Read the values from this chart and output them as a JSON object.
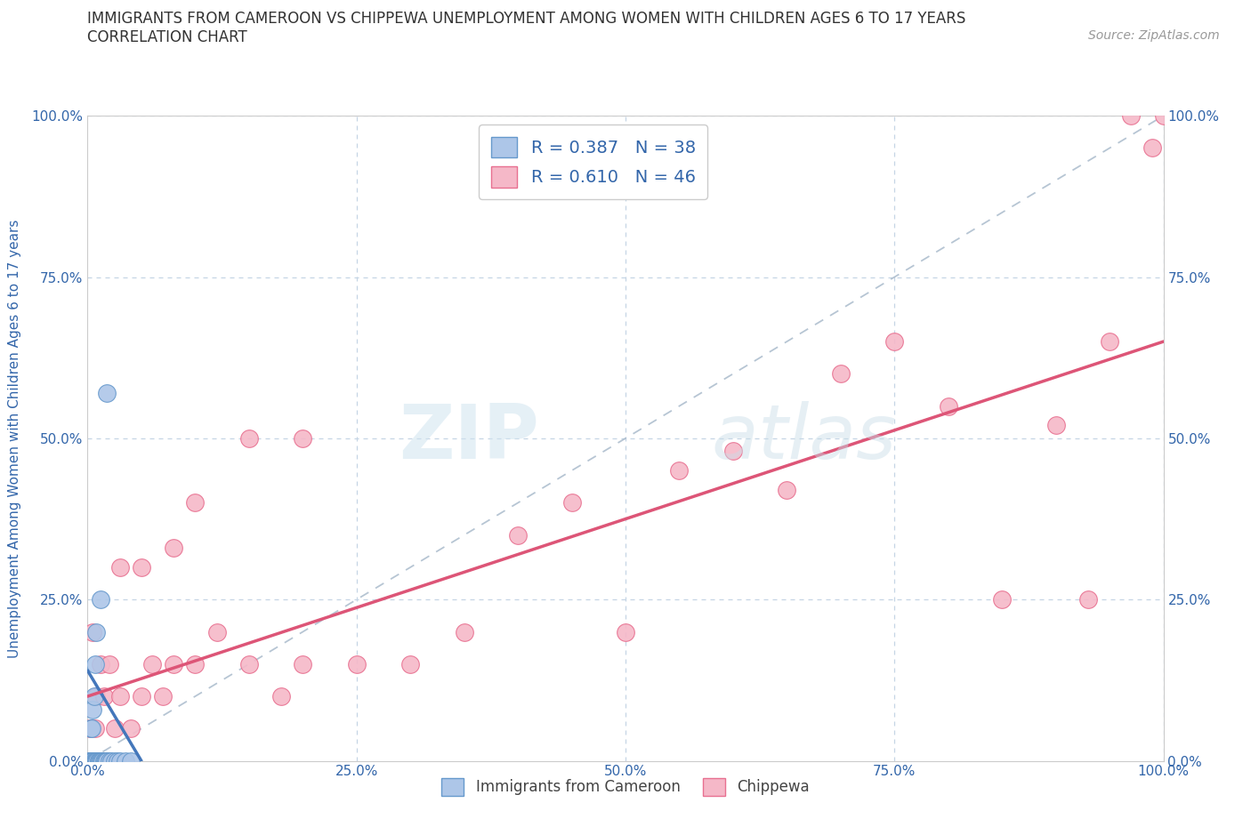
{
  "title_line1": "IMMIGRANTS FROM CAMEROON VS CHIPPEWA UNEMPLOYMENT AMONG WOMEN WITH CHILDREN AGES 6 TO 17 YEARS",
  "title_line2": "CORRELATION CHART",
  "source": "Source: ZipAtlas.com",
  "ylabel": "Unemployment Among Women with Children Ages 6 to 17 years",
  "xlim": [
    0,
    100
  ],
  "ylim": [
    0,
    100
  ],
  "xtick_labels": [
    "0.0%",
    "25.0%",
    "50.0%",
    "75.0%",
    "100.0%"
  ],
  "xtick_vals": [
    0,
    25,
    50,
    75,
    100
  ],
  "ytick_vals": [
    0,
    25,
    50,
    75,
    100
  ],
  "ytick_labels": [
    "0.0%",
    "25.0%",
    "50.0%",
    "75.0%",
    "100.0%"
  ],
  "legend_label1": "Immigrants from Cameroon",
  "legend_label2": "Chippewa",
  "legend_R1": "R = 0.387",
  "legend_N1": "N = 38",
  "legend_R2": "R = 0.610",
  "legend_N2": "N = 46",
  "watermark_zip": "ZIP",
  "watermark_atlas": "atlas",
  "color_blue_fill": "#adc6e8",
  "color_blue_edge": "#6699cc",
  "color_pink_fill": "#f5b8c8",
  "color_pink_edge": "#e87090",
  "color_trendline_blue": "#4477bb",
  "color_trendline_pink": "#dd5577",
  "color_diag": "#aabbcc",
  "color_grid": "#c5d5e5",
  "color_axis_text": "#3366aa",
  "color_title": "#333333",
  "color_source": "#999999",
  "cam_x": [
    0.1,
    0.2,
    0.2,
    0.3,
    0.3,
    0.4,
    0.5,
    0.5,
    0.6,
    0.7,
    0.8,
    0.8,
    0.9,
    1.0,
    1.0,
    1.1,
    1.2,
    1.3,
    1.4,
    1.5,
    1.6,
    1.7,
    1.8,
    2.0,
    2.2,
    2.5,
    2.8,
    3.0,
    3.5,
    4.0,
    0.3,
    0.4,
    0.5,
    0.6,
    0.7,
    0.8,
    1.2,
    1.8
  ],
  "cam_y": [
    0.0,
    0.0,
    0.0,
    0.0,
    0.0,
    0.0,
    0.0,
    0.0,
    0.0,
    0.0,
    0.0,
    0.0,
    0.0,
    0.0,
    0.0,
    0.0,
    0.0,
    0.0,
    0.0,
    0.0,
    0.0,
    0.0,
    0.0,
    0.0,
    0.0,
    0.0,
    0.0,
    0.0,
    0.0,
    0.0,
    5.0,
    5.0,
    8.0,
    10.0,
    15.0,
    20.0,
    25.0,
    57.0
  ],
  "chip_x": [
    0.2,
    0.4,
    0.5,
    0.7,
    0.8,
    1.0,
    1.2,
    1.5,
    2.0,
    2.5,
    3.0,
    4.0,
    5.0,
    6.0,
    7.0,
    8.0,
    10.0,
    12.0,
    15.0,
    18.0,
    20.0,
    25.0,
    30.0,
    35.0,
    40.0,
    45.0,
    50.0,
    55.0,
    60.0,
    65.0,
    70.0,
    75.0,
    80.0,
    85.0,
    90.0,
    93.0,
    95.0,
    97.0,
    99.0,
    100.0,
    3.0,
    5.0,
    8.0,
    10.0,
    15.0,
    20.0
  ],
  "chip_y": [
    5.0,
    0.0,
    20.0,
    5.0,
    10.0,
    0.0,
    15.0,
    10.0,
    15.0,
    5.0,
    10.0,
    5.0,
    10.0,
    15.0,
    10.0,
    15.0,
    15.0,
    20.0,
    15.0,
    10.0,
    15.0,
    15.0,
    15.0,
    20.0,
    35.0,
    40.0,
    20.0,
    45.0,
    48.0,
    42.0,
    60.0,
    65.0,
    55.0,
    25.0,
    52.0,
    25.0,
    65.0,
    100.0,
    95.0,
    100.0,
    30.0,
    30.0,
    33.0,
    40.0,
    50.0,
    50.0
  ],
  "blue_trend_x0": 0.0,
  "blue_trend_x1": 5.0,
  "blue_trend_y0": 14.0,
  "blue_trend_y1": 0.0,
  "pink_trend_x0": 0.0,
  "pink_trend_x1": 100.0,
  "pink_trend_y0": 10.0,
  "pink_trend_y1": 65.0
}
